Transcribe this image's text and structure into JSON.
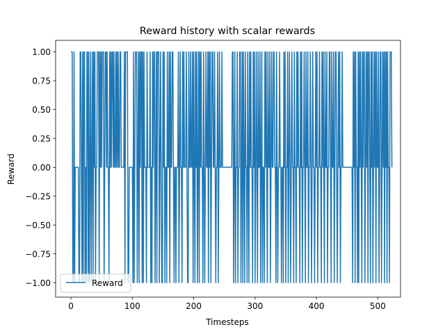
{
  "chart_data": {
    "type": "line",
    "title": "Reward history with scalar rewards",
    "xlabel": "Timesteps",
    "ylabel": "Reward",
    "xlim": [
      -25,
      537
    ],
    "ylim": [
      -1.125,
      1.1
    ],
    "xticks": [
      0,
      100,
      200,
      300,
      400,
      500
    ],
    "yticks": [
      -1.0,
      -0.75,
      -0.5,
      -0.25,
      0.0,
      0.25,
      0.5,
      0.75,
      1.0
    ],
    "ytick_labels": [
      "−1.00",
      "−0.75",
      "−0.50",
      "−0.25",
      "0.00",
      "0.25",
      "0.50",
      "0.75",
      "1.00"
    ],
    "xtick_labels": [
      "0",
      "100",
      "200",
      "300",
      "400",
      "500"
    ],
    "grid": false,
    "legend_placement": "lower-left",
    "series": [
      {
        "name": "Reward",
        "color": "#1f77b4",
        "x_start": 0,
        "values": [
          1,
          1,
          1,
          -1,
          -1,
          1,
          -1,
          0,
          0,
          0,
          0,
          0,
          0,
          -1,
          -1,
          1,
          1,
          0,
          -1,
          1,
          -1,
          1,
          1,
          -1,
          0,
          -1,
          1,
          1,
          -1,
          1,
          -1,
          0,
          1,
          -1,
          0,
          1,
          -1,
          1,
          0,
          1,
          -1,
          0,
          0,
          1,
          1,
          1,
          -1,
          1,
          0,
          1,
          0,
          1,
          1,
          1,
          -1,
          0,
          1,
          1,
          0,
          1,
          0,
          0,
          -1,
          1,
          0,
          1,
          0,
          1,
          1,
          0,
          1,
          0,
          0,
          1,
          0,
          1,
          0,
          1,
          0,
          0,
          1,
          1,
          0,
          0,
          0,
          0,
          0,
          1,
          -1,
          1,
          1,
          1,
          1,
          -1,
          -1,
          0,
          0,
          0,
          0,
          0,
          0,
          -1,
          1,
          -1,
          0,
          1,
          1,
          1,
          -1,
          0,
          1,
          -1,
          1,
          0,
          1,
          1,
          -1,
          1,
          -1,
          1,
          0,
          0,
          0,
          -1,
          1,
          0,
          0,
          0,
          0,
          1,
          -1,
          0,
          -1,
          1,
          0,
          1,
          1,
          -1,
          0,
          1,
          -1,
          1,
          1,
          1,
          -1,
          0,
          1,
          0,
          -1,
          -1,
          1,
          0,
          1,
          -1,
          0,
          0,
          -1,
          1,
          0,
          0,
          1,
          -1,
          1,
          0,
          0,
          1,
          1,
          0,
          -1,
          0,
          0,
          -1,
          0,
          0,
          0,
          1,
          -1,
          0,
          1,
          0,
          0,
          -1,
          1,
          0,
          1,
          0,
          0,
          0,
          1,
          0,
          -1,
          -1,
          1,
          0,
          0,
          1,
          0,
          0,
          1,
          -1,
          1,
          0,
          -1,
          1,
          0,
          1,
          -1,
          0,
          1,
          -1,
          1,
          0,
          1,
          0,
          0,
          -1,
          1,
          0,
          -1,
          0,
          1,
          0,
          0,
          1,
          -1,
          1,
          0,
          1,
          -1,
          0,
          1,
          1,
          0,
          0,
          1,
          0,
          -1,
          0,
          0,
          1,
          -1,
          0,
          1,
          0,
          0,
          0,
          1,
          0,
          0,
          0,
          0,
          0,
          0,
          0,
          0,
          0,
          0,
          0,
          0,
          0,
          0,
          0,
          0,
          1,
          1,
          -1,
          0,
          1,
          -1,
          0,
          0,
          1,
          -1,
          0,
          0,
          1,
          1,
          -1,
          0,
          1,
          -1,
          1,
          0,
          -1,
          1,
          0,
          0,
          -1,
          1,
          0,
          -1,
          1,
          0,
          1,
          0,
          0,
          -1,
          1,
          0,
          1,
          -1,
          0,
          1,
          0,
          -1,
          1,
          0,
          0,
          1,
          -1,
          0,
          1,
          -1,
          0,
          0,
          -1,
          1,
          0,
          1,
          0,
          -1,
          1,
          0,
          0,
          1,
          -1,
          0,
          1,
          0,
          0,
          1,
          1,
          0,
          0,
          -1,
          1,
          0,
          -1,
          0,
          0,
          1,
          0,
          0,
          -1,
          0,
          0,
          -1,
          1,
          0,
          1,
          -1,
          0,
          0,
          1,
          -1,
          0,
          1,
          0,
          -1,
          0,
          1,
          0,
          0,
          -1,
          1,
          0,
          0,
          -1,
          1,
          0,
          1,
          0,
          0,
          -1,
          1,
          0,
          1,
          -1,
          0,
          0,
          1,
          0,
          -1,
          1,
          0,
          0,
          1,
          -1,
          0,
          0,
          1,
          0,
          -1,
          0,
          1,
          0,
          0,
          -1,
          0,
          1,
          0,
          1,
          -1,
          0,
          0,
          1,
          0,
          0,
          -1,
          1,
          0,
          1,
          0,
          -1,
          1,
          0,
          0,
          1,
          -1,
          0,
          0,
          1,
          1,
          0,
          -1,
          1,
          0,
          0,
          1,
          -1,
          0,
          1,
          1,
          0,
          -1,
          0,
          1,
          0,
          1,
          -1,
          0,
          0,
          1,
          0,
          0,
          0,
          0,
          0,
          0,
          0,
          0,
          0,
          0,
          0,
          0,
          0,
          0,
          0,
          0,
          -1,
          1,
          0,
          1,
          -1,
          1,
          0,
          0,
          -1,
          1,
          -1,
          1,
          0,
          1,
          0,
          -1,
          1,
          0,
          1,
          1,
          -1,
          0,
          1,
          0,
          1,
          -1,
          1,
          1,
          0,
          -1,
          1,
          0,
          1,
          -1,
          0,
          1,
          0,
          1,
          -1,
          1,
          0,
          0,
          1,
          -1,
          0,
          1,
          1,
          -1,
          0,
          1,
          0,
          1,
          -1,
          1,
          0,
          1,
          -1,
          1,
          0,
          0,
          -1,
          1,
          1,
          1,
          0
        ]
      }
    ]
  },
  "legend": {
    "label": "Reward"
  }
}
